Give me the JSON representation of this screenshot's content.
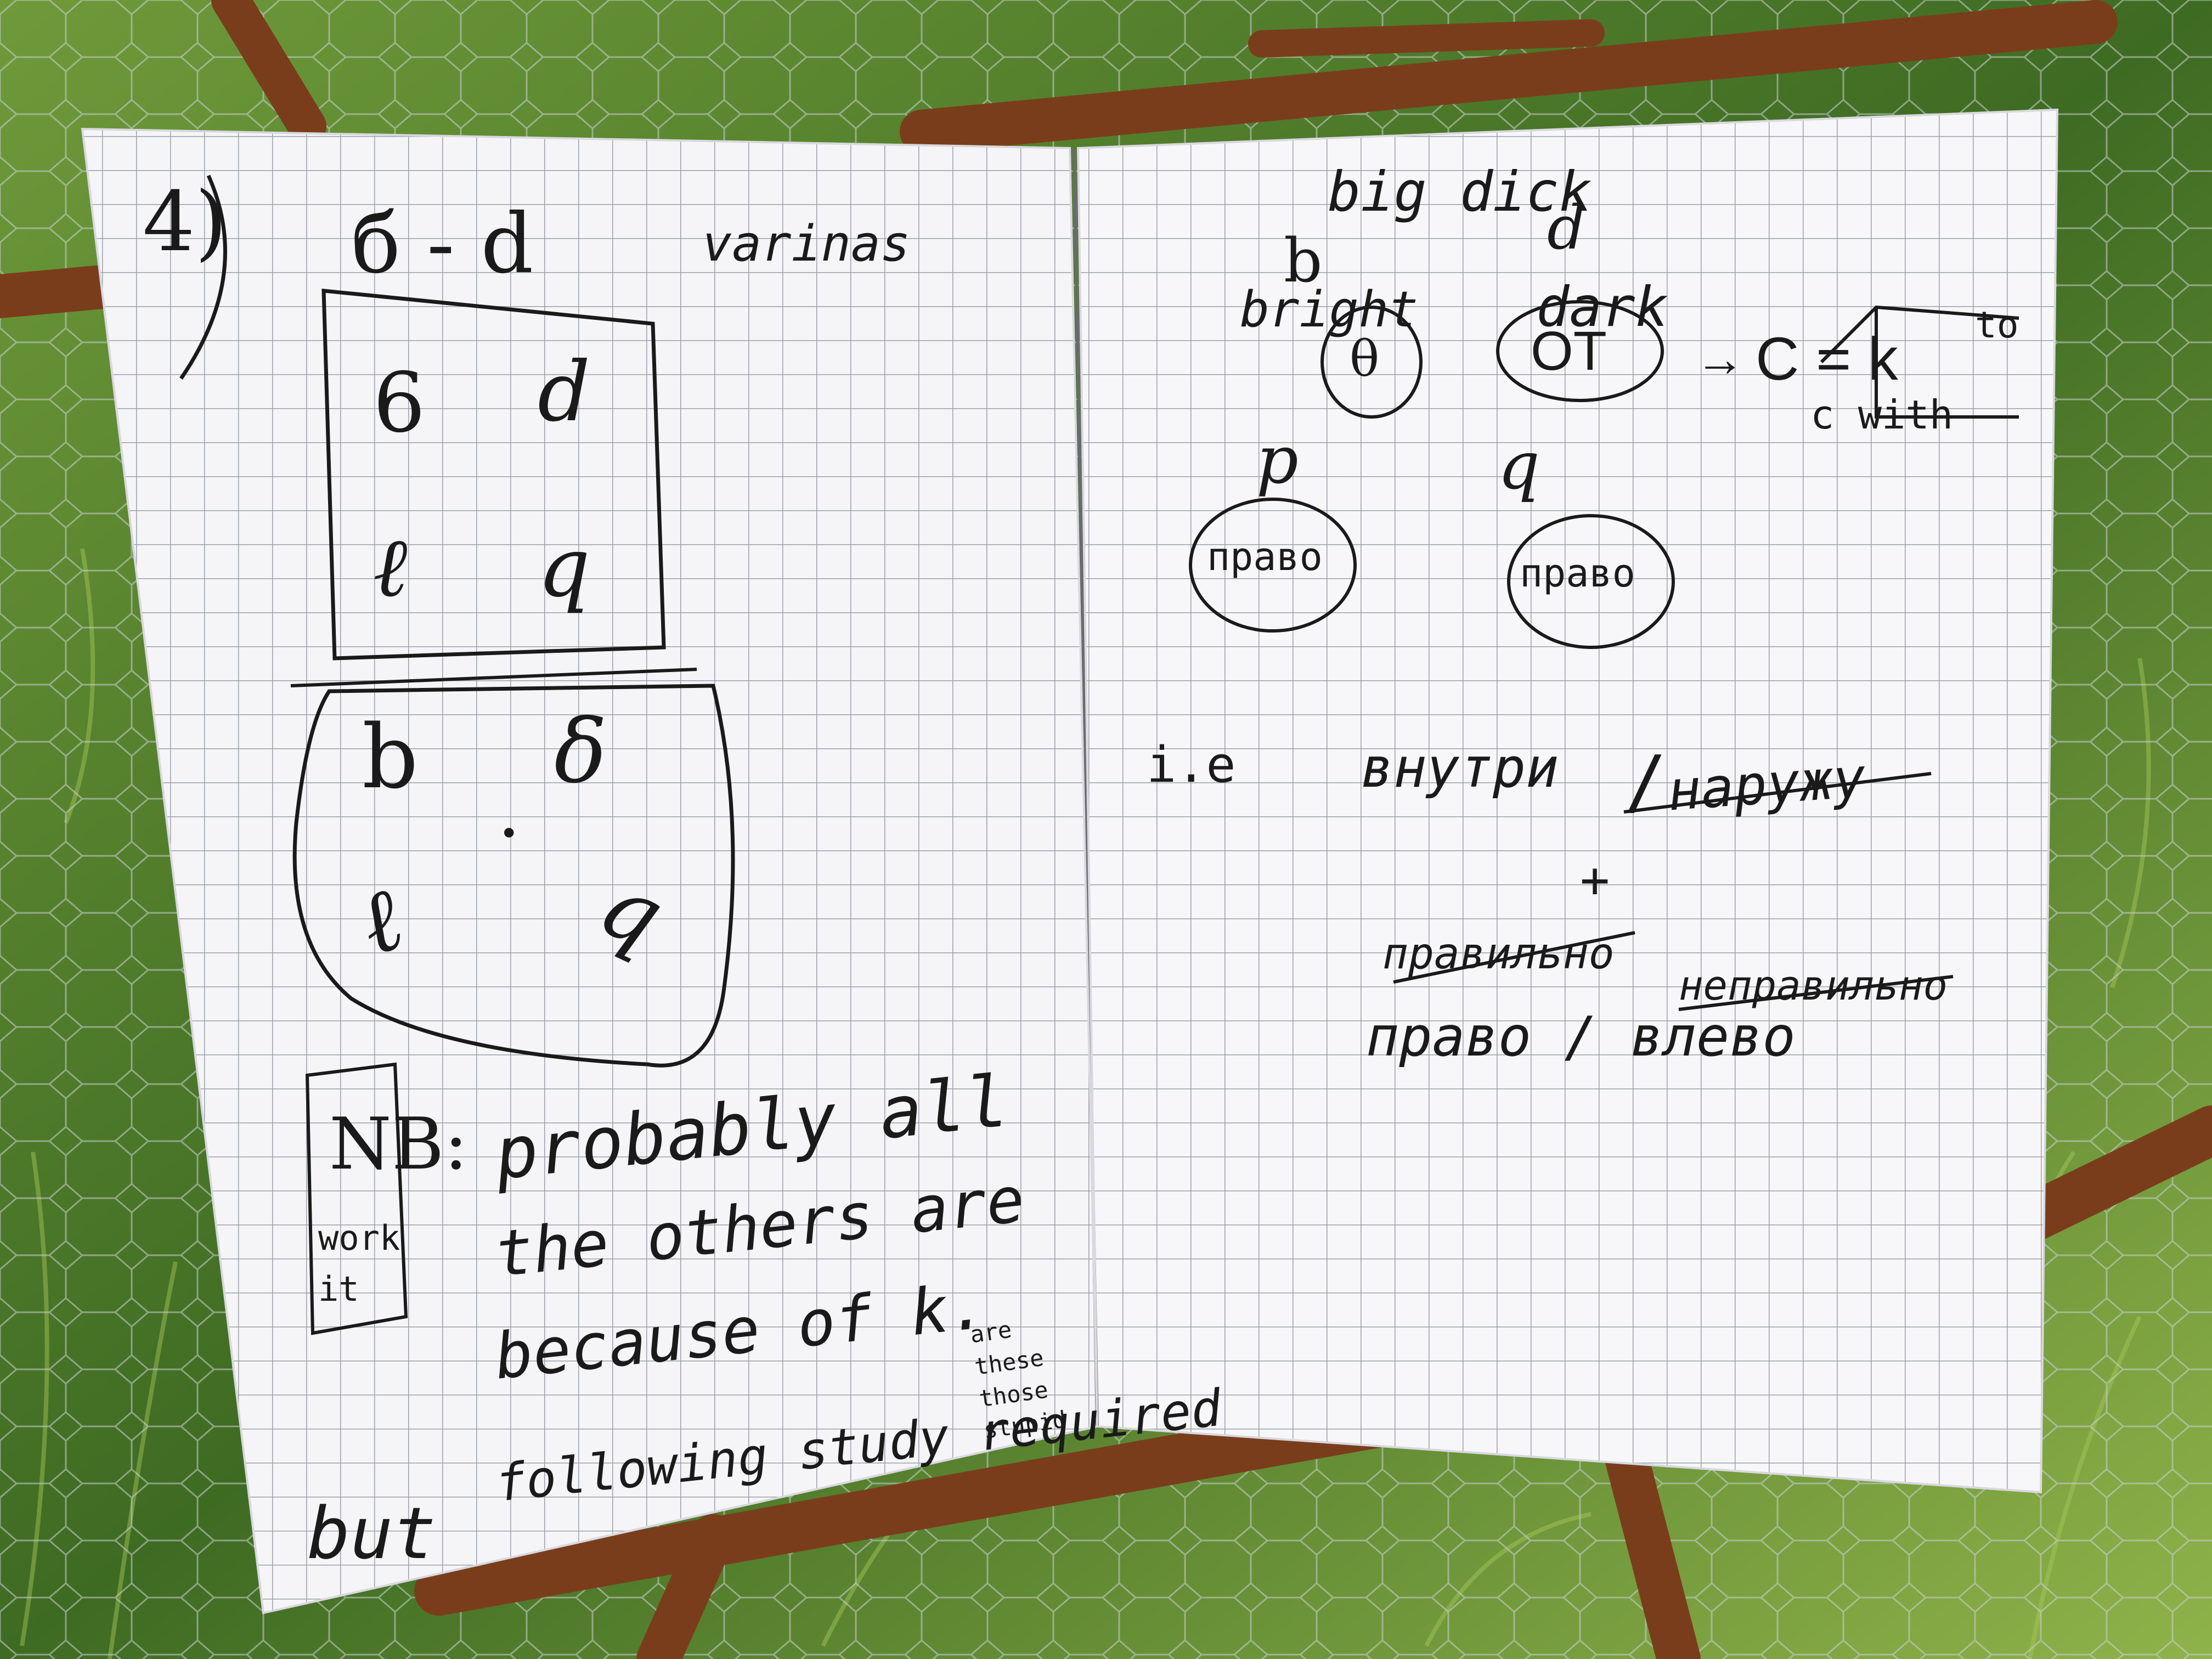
{
  "image": {
    "subject": "open grid-paper notebook hanging on a rusty rebar and chicken-wire fence in front of green grass",
    "colors": {
      "grass": "#4d7a2c",
      "grass_light": "#8fb34a",
      "rebar": "#7a3d1c",
      "paper": "#f5f5f8",
      "grid": "#9aa0a8",
      "ink": "#1a1a1a",
      "wire": "#c9cfd2"
    }
  },
  "left_page": {
    "number": "4)",
    "heading_letters": "б - d",
    "heading_word": "varinas",
    "top_grid": [
      "6",
      "d",
      "ℓ",
      "q"
    ],
    "bottom_grid": [
      "b",
      "δ",
      "ℓ",
      "q"
    ],
    "center_dot": "•",
    "nb_label": "NB:",
    "side_note": "work it",
    "line1": "probably all",
    "line2": "the others are",
    "line3": "because of k.",
    "line4": "following study required",
    "corner_note": "are these those stupid",
    "but": "but"
  },
  "right_page": {
    "big_dick": "big dick",
    "b_letter": "b",
    "d_letter": "d",
    "bright": "bright",
    "dark": "dark",
    "theta": "θ",
    "ot": "OT",
    "arrow": "→",
    "c_eq_k": "C = k",
    "to": "to",
    "c_with": "c with",
    "p_letter": "p",
    "q_letter": "q",
    "pravo1": "право",
    "pravo2": "право",
    "ie": "i.e",
    "vnutri": "внутри",
    "slash1": "/",
    "naruzhu": "наружу",
    "plus": "+",
    "pravilno_struck": "правильно",
    "nepravilno_struck": "неправильно",
    "pravo_vlevo": "право / влево"
  }
}
